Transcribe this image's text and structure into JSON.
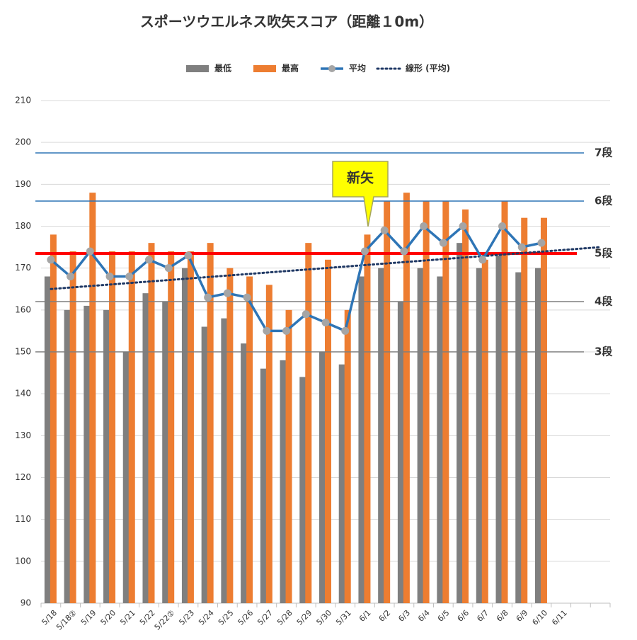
{
  "chart_data": {
    "type": "bar",
    "title": "スポーツウエルネス吹矢スコア（距離１0m）",
    "categories": [
      "5/18",
      "5/18②",
      "5/19",
      "5/20",
      "5/21",
      "5/22",
      "5/22②",
      "5/23",
      "5/24",
      "5/25",
      "5/26",
      "5/27",
      "5/28",
      "5/29",
      "5/30",
      "5/31",
      "6/1",
      "6/2",
      "6/3",
      "6/4",
      "6/5",
      "6/6",
      "6/7",
      "6/8",
      "6/9",
      "6/10",
      "6/11",
      null,
      null
    ],
    "series": [
      {
        "name": "最低",
        "color": "#7f7f7f",
        "kind": "bar",
        "values": [
          168,
          160,
          161,
          160,
          150,
          164,
          162,
          170,
          156,
          158,
          152,
          146,
          148,
          144,
          150,
          147,
          168,
          170,
          162,
          170,
          168,
          176,
          170,
          173,
          169,
          170,
          null,
          null,
          null
        ]
      },
      {
        "name": "最高",
        "color": "#ed7d31",
        "kind": "bar",
        "values": [
          178,
          174,
          188,
          174,
          174,
          176,
          174,
          174,
          176,
          170,
          168,
          166,
          160,
          176,
          172,
          160,
          178,
          186,
          188,
          186,
          186,
          184,
          172,
          186,
          182,
          182,
          null,
          null,
          null
        ]
      },
      {
        "name": "平均",
        "color": "#2e75b6",
        "kind": "line",
        "values": [
          172,
          168,
          174,
          168,
          168,
          172,
          170,
          173,
          163,
          164,
          163,
          155,
          155,
          159,
          157,
          155,
          174,
          179,
          174,
          180,
          176,
          180,
          172,
          180,
          175,
          176,
          null,
          null,
          null
        ]
      }
    ],
    "trend": {
      "name": "線形 (平均)",
      "color": "#1f3864",
      "start": 165,
      "end": 175
    },
    "reference_lines": [
      {
        "label": "7段",
        "value": 197.5,
        "color": "#2e75b6",
        "label_color": "#222"
      },
      {
        "label": "6段",
        "value": 186,
        "color": "#2e75b6",
        "label_color": "#222"
      },
      {
        "label": "5段",
        "value": 173.5,
        "color": "#ff0000",
        "label_color": "#2e75b6"
      },
      {
        "label": "4段",
        "value": 162,
        "color": "#7f7f7f",
        "label_color": "#222"
      },
      {
        "label": "3段",
        "value": 150,
        "color": "#7f7f7f",
        "label_color": "#222"
      }
    ],
    "annotation": "新矢",
    "ylim": [
      90,
      210
    ],
    "yticks": [
      90,
      100,
      110,
      120,
      130,
      140,
      150,
      160,
      170,
      180,
      190,
      200,
      210
    ],
    "grid": true
  }
}
